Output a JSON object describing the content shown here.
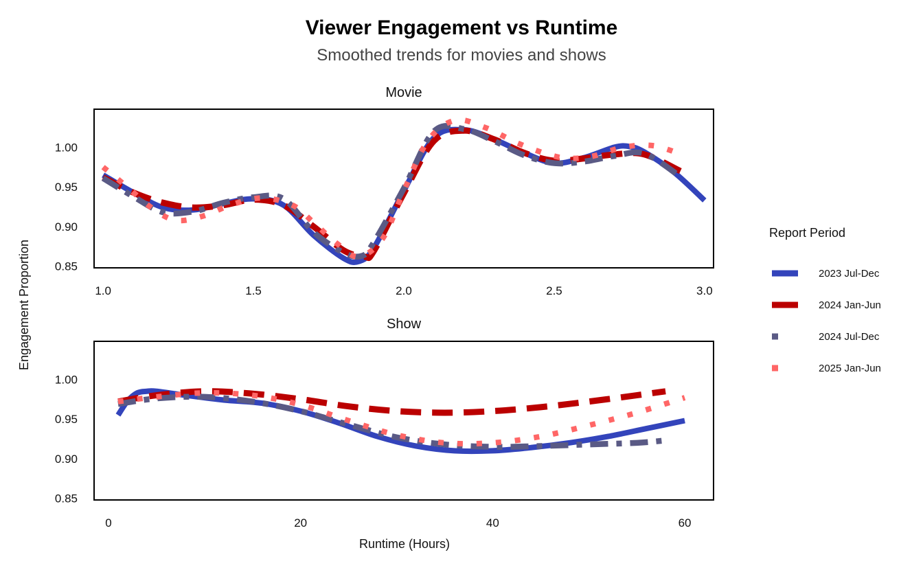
{
  "chart_data": {
    "type": "line",
    "title": "Viewer Engagement vs Runtime",
    "subtitle": "Smoothed trends for movies and shows",
    "ylabel": "Engagement Proportion",
    "xlabel": "Runtime (Hours)",
    "legend": {
      "title": "Report Period",
      "placement": "right",
      "entries": [
        {
          "name": "2023 Jul-Dec",
          "color": "#3344bb",
          "style": "solid"
        },
        {
          "name": "2024 Jan-Jun",
          "color": "#bb0000",
          "style": "dashed"
        },
        {
          "name": "2024 Jul-Dec",
          "color": "#5a5a85",
          "style": "dash-dot"
        },
        {
          "name": "2025 Jan-Jun",
          "color": "#ff6666",
          "style": "dotted"
        }
      ]
    },
    "panels": [
      {
        "name": "Movie",
        "xlim": [
          0.97,
          3.03
        ],
        "ylim": [
          0.848,
          1.048
        ],
        "xticks": [
          "1.0",
          "1.5",
          "2.0",
          "2.5",
          "3.0"
        ],
        "xtick_values": [
          1.0,
          1.5,
          2.0,
          2.5,
          3.0
        ],
        "yticks": [
          "0.85",
          "0.90",
          "0.95",
          "1.00"
        ],
        "ytick_values": [
          0.85,
          0.9,
          0.95,
          1.0
        ],
        "series": [
          {
            "name": "2023 Jul-Dec",
            "x": [
              1.0,
              1.1,
              1.2,
              1.3,
              1.4,
              1.5,
              1.6,
              1.7,
              1.8,
              1.85,
              1.9,
              2.0,
              2.1,
              2.2,
              2.3,
              2.4,
              2.5,
              2.6,
              2.7,
              2.75,
              2.8,
              2.9,
              3.0
            ],
            "y": [
              0.965,
              0.943,
              0.924,
              0.921,
              0.929,
              0.935,
              0.927,
              0.889,
              0.86,
              0.856,
              0.873,
              0.945,
              1.012,
              1.022,
              1.01,
              0.993,
              0.98,
              0.987,
              1.0,
              1.001,
              0.994,
              0.968,
              0.933
            ]
          },
          {
            "name": "2024 Jan-Jun",
            "x": [
              1.0,
              1.1,
              1.2,
              1.3,
              1.4,
              1.5,
              1.6,
              1.7,
              1.8,
              1.87,
              1.9,
              2.0,
              2.1,
              2.2,
              2.3,
              2.4,
              2.5,
              2.6,
              2.7,
              2.8,
              2.92
            ],
            "y": [
              0.962,
              0.943,
              0.93,
              0.924,
              0.927,
              0.934,
              0.927,
              0.9,
              0.87,
              0.862,
              0.869,
              0.942,
              1.008,
              1.021,
              1.01,
              0.993,
              0.983,
              0.986,
              0.991,
              0.991,
              0.97
            ]
          },
          {
            "name": "2024 Jul-Dec",
            "x": [
              1.0,
              1.1,
              1.2,
              1.3,
              1.4,
              1.5,
              1.6,
              1.7,
              1.8,
              1.86,
              1.9,
              2.0,
              2.1,
              2.2,
              2.3,
              2.4,
              2.5,
              2.6,
              2.7,
              2.8,
              2.92
            ],
            "y": [
              0.961,
              0.938,
              0.918,
              0.919,
              0.93,
              0.937,
              0.935,
              0.893,
              0.867,
              0.863,
              0.88,
              0.948,
              1.02,
              1.023,
              1.008,
              0.99,
              0.98,
              0.982,
              0.989,
              0.992,
              0.963
            ]
          },
          {
            "name": "2025 Jan-Jun",
            "x": [
              1.0,
              1.08,
              1.16,
              1.24,
              1.33,
              1.43,
              1.53,
              1.63,
              1.7,
              1.78,
              1.85,
              1.93,
              2.0,
              2.08,
              2.17,
              2.27,
              2.38,
              2.48,
              2.55,
              2.63,
              2.73,
              2.83,
              2.93
            ],
            "y": [
              0.975,
              0.95,
              0.924,
              0.908,
              0.913,
              0.928,
              0.936,
              0.927,
              0.905,
              0.878,
              0.862,
              0.885,
              0.945,
              1.008,
              1.034,
              1.025,
              1.005,
              0.991,
              0.986,
              0.989,
              1.0,
              1.002,
              0.99
            ]
          }
        ]
      },
      {
        "name": "Show",
        "xlim": [
          -1.5,
          63
        ],
        "ylim": [
          0.848,
          1.048
        ],
        "xticks": [
          "0",
          "20",
          "40",
          "60"
        ],
        "xtick_values": [
          0,
          20,
          40,
          60
        ],
        "yticks": [
          "0.85",
          "0.90",
          "0.95",
          "1.00"
        ],
        "ytick_values": [
          0.85,
          0.9,
          0.95,
          1.0
        ],
        "series": [
          {
            "name": "2023 Jul-Dec",
            "x": [
              1,
              2,
              3,
              4,
              5,
              8,
              12,
              16,
              20,
              24,
              28,
              32,
              36,
              40,
              44,
              48,
              52,
              56,
              60
            ],
            "y": [
              0.955,
              0.973,
              0.983,
              0.985,
              0.985,
              0.98,
              0.974,
              0.97,
              0.96,
              0.945,
              0.928,
              0.916,
              0.91,
              0.91,
              0.914,
              0.92,
              0.928,
              0.938,
              0.948
            ]
          },
          {
            "name": "2024 Jan-Jun",
            "x": [
              1,
              5,
              10,
              15,
              20,
              25,
              30,
              35,
              40,
              45,
              50,
              55,
              58
            ],
            "y": [
              0.972,
              0.98,
              0.985,
              0.982,
              0.975,
              0.966,
              0.96,
              0.958,
              0.96,
              0.965,
              0.972,
              0.98,
              0.985
            ]
          },
          {
            "name": "2024 Jul-Dec",
            "x": [
              1,
              5,
              10,
              15,
              20,
              25,
              30,
              35,
              40,
              45,
              50,
              55,
              58
            ],
            "y": [
              0.969,
              0.976,
              0.978,
              0.972,
              0.96,
              0.943,
              0.927,
              0.918,
              0.915,
              0.916,
              0.918,
              0.92,
              0.923
            ]
          },
          {
            "name": "2025 Jan-Jun",
            "x": [
              1,
              5,
              10,
              15,
              20,
              25,
              30,
              35,
              40,
              45,
              50,
              55,
              60
            ],
            "y": [
              0.972,
              0.978,
              0.983,
              0.98,
              0.968,
              0.948,
              0.93,
              0.92,
              0.92,
              0.928,
              0.942,
              0.958,
              0.977
            ]
          }
        ]
      }
    ]
  }
}
